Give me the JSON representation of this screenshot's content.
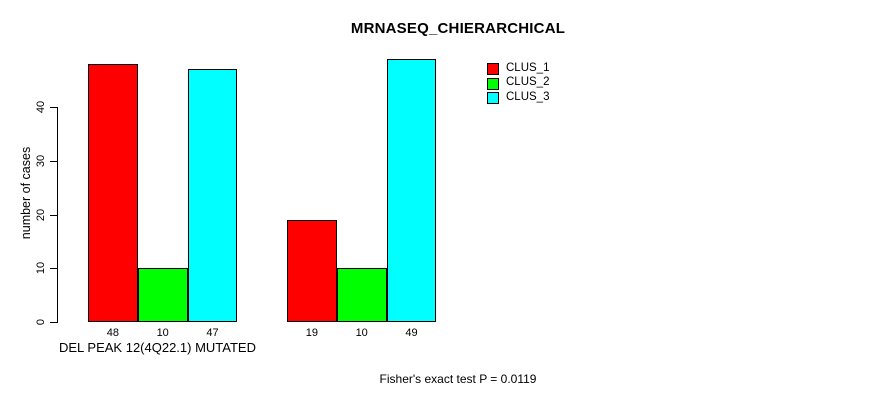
{
  "title": "MRNASEQ_CHIERARCHICAL",
  "footer_annotation": "Fisher's exact test P = 0.0119",
  "chart_data": {
    "type": "bar",
    "title": "MRNASEQ_CHIERARCHICAL",
    "xlabel": "DEL PEAK 12(4Q22.1) MUTATED",
    "ylabel": "number of cases",
    "ylim": [
      0,
      40
    ],
    "yticks": [
      0,
      10,
      20,
      30,
      40
    ],
    "grid": false,
    "legend_position": "top-right",
    "num_groups": 2,
    "series": [
      {
        "name": "CLUS_1",
        "color": "#ff0000",
        "values": [
          48,
          19
        ]
      },
      {
        "name": "CLUS_2",
        "color": "#00ff00",
        "values": [
          10,
          10
        ]
      },
      {
        "name": "CLUS_3",
        "color": "#00ffff",
        "values": [
          47,
          49
        ]
      }
    ],
    "bar_value_labels": [
      [
        48,
        10,
        47
      ],
      [
        19,
        10,
        49
      ]
    ],
    "annotation": "Fisher's exact test P = 0.0119"
  }
}
